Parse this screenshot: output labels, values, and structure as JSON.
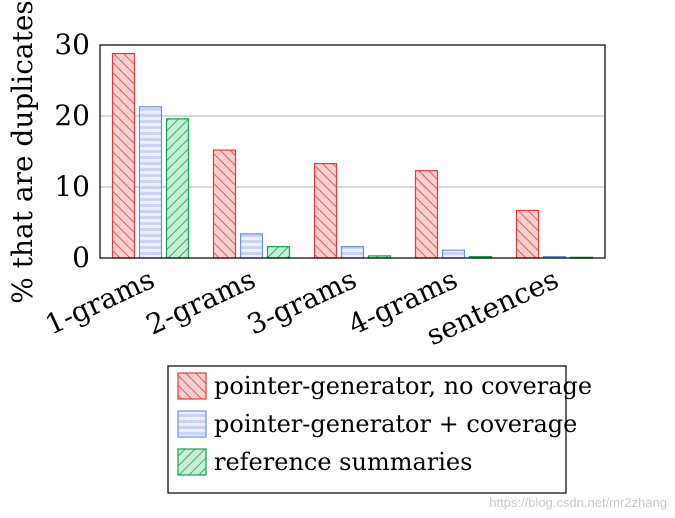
{
  "chart_data": {
    "type": "bar",
    "title": "",
    "xlabel": "",
    "ylabel": "% that are duplicates",
    "categories": [
      "1-grams",
      "2-grams",
      "3-grams",
      "4-grams",
      "sentences"
    ],
    "yticks": [
      0,
      10,
      20,
      30
    ],
    "ylim": [
      0,
      30
    ],
    "grid": "horizontal",
    "legend_position": "bottom",
    "series": [
      {
        "name": "pointer-generator, no coverage",
        "values": [
          28.8,
          15.2,
          13.3,
          12.3,
          6.7
        ],
        "color": "#e8373a",
        "fill": "#f9b8b8",
        "pattern": "diagonal-hatch"
      },
      {
        "name": "pointer-generator + coverage",
        "values": [
          21.3,
          3.4,
          1.6,
          1.1,
          0.2
        ],
        "color": "#6b8ee8",
        "fill": "#d4dcf8",
        "pattern": "horizontal-lines"
      },
      {
        "name": "reference summaries",
        "values": [
          19.6,
          1.6,
          0.3,
          0.2,
          0.1
        ],
        "color": "#15a050",
        "fill": "#9fe0b6",
        "pattern": "anti-diagonal-hatch"
      }
    ]
  },
  "watermark": "https://blog.csdn.net/mr2zhang"
}
